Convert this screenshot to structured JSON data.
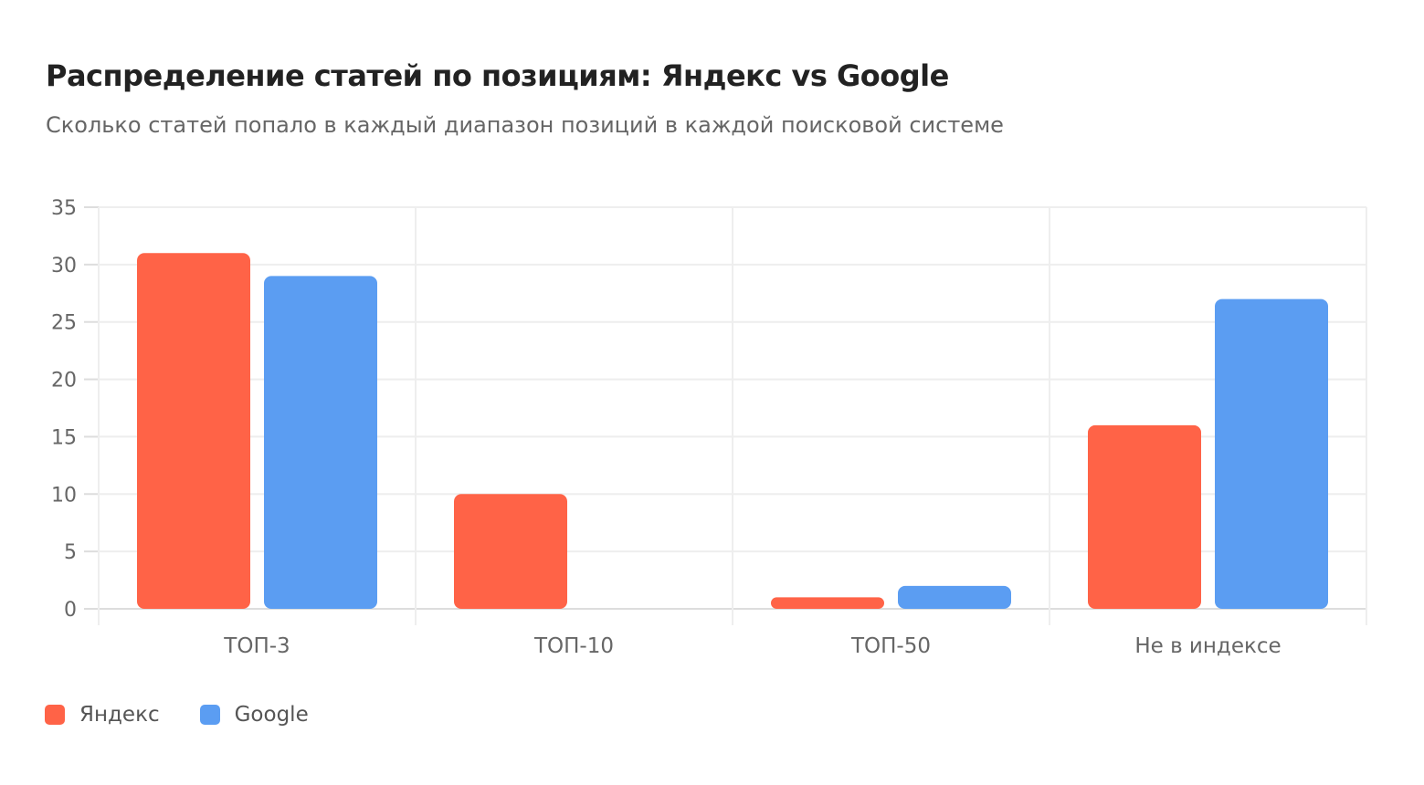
{
  "chart_data": {
    "type": "bar",
    "title": "Распределение статей по позициям: Яндекс vs Google",
    "subtitle": "Сколько статей попало в каждый диапазон позиций в каждой поисковой системе",
    "categories": [
      "ТОП-3",
      "ТОП-10",
      "ТОП-50",
      "Не в индексе"
    ],
    "series": [
      {
        "name": "Яндекс",
        "values": [
          31,
          10,
          1,
          16
        ],
        "color": "#FF6347"
      },
      {
        "name": "Google",
        "values": [
          29,
          0,
          2,
          27
        ],
        "color": "#5B9DF2"
      }
    ],
    "ylim": [
      0,
      35
    ],
    "yticks": [
      "0",
      "5",
      "10",
      "15",
      "20",
      "25",
      "30",
      "35"
    ],
    "grid": true,
    "legend": "bottom-left"
  }
}
